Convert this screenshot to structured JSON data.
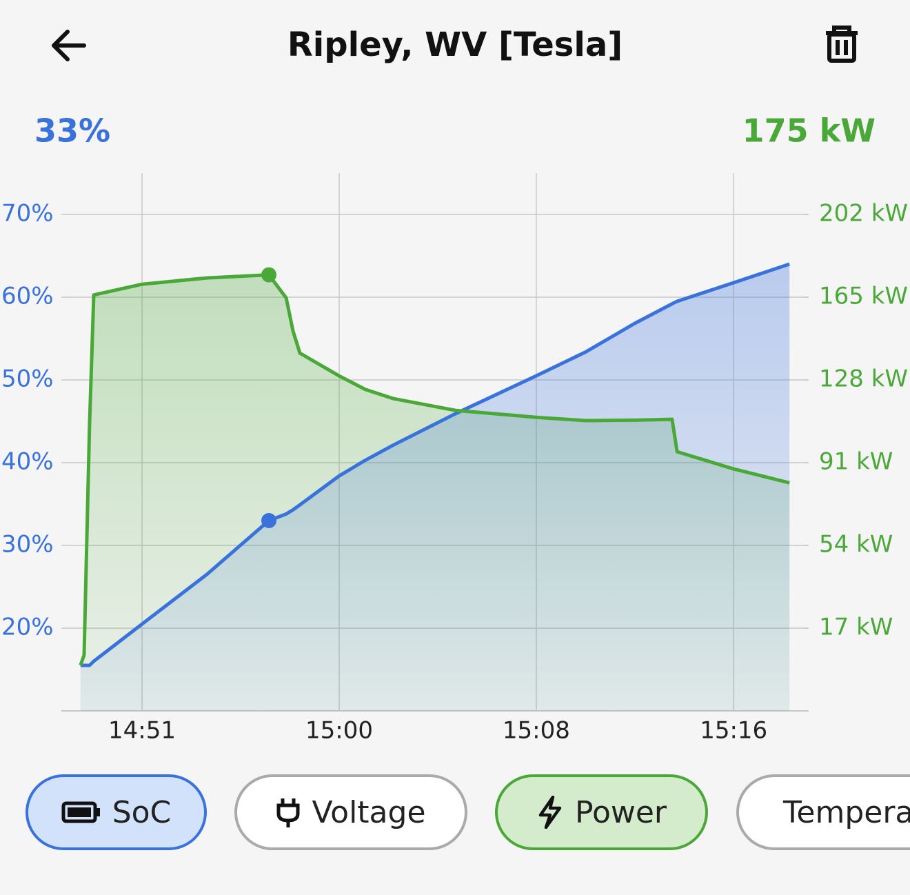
{
  "header": {
    "title": "Ripley, WV [Tesla]"
  },
  "chart_data": {
    "type": "line",
    "readouts": {
      "left": "33%",
      "right": "175 kW"
    },
    "cursor": 6,
    "x": [
      49.07,
      49.22,
      49.45,
      49.63,
      51.67,
      54.41,
      57.03,
      57.76,
      58.05,
      58.34,
      60,
      61.11,
      62.27,
      64.9,
      68.33,
      70.43,
      72.47,
      74.07,
      74.28,
      76.67,
      79.03
    ],
    "xlim": [
      48.26,
      79.84
    ],
    "xticks": [
      {
        "value": 51.67,
        "label": "14:51"
      },
      {
        "value": 60,
        "label": "15:00"
      },
      {
        "value": 68.33,
        "label": "15:08"
      },
      {
        "value": 76.67,
        "label": "15:16"
      }
    ],
    "ylim": [
      10,
      75
    ],
    "yticks": [
      {
        "value": 20,
        "label": "20%"
      },
      {
        "value": 30,
        "label": "30%"
      },
      {
        "value": 40,
        "label": "40%"
      },
      {
        "value": 50,
        "label": "50%"
      },
      {
        "value": 60,
        "label": "60%"
      },
      {
        "value": 70,
        "label": "70%"
      }
    ],
    "y2lim": [
      -20,
      220.5
    ],
    "y2ticks": [
      {
        "value": 17,
        "label": "17 kW"
      },
      {
        "value": 54,
        "label": "54 kW"
      },
      {
        "value": 91,
        "label": "91 kW"
      },
      {
        "value": 128,
        "label": "128 kW"
      },
      {
        "value": 165,
        "label": "165 kW"
      },
      {
        "value": 202,
        "label": "202 kW"
      }
    ],
    "grid": true,
    "series": [
      {
        "name": "SoC",
        "color": "#3a72dc",
        "values": [
          15.5,
          15.5,
          15.5,
          16.0,
          20.5,
          26.5,
          33,
          33.8,
          34.3,
          34.9,
          38.4,
          40.3,
          42.1,
          45.9,
          50.5,
          53.4,
          56.8,
          59.2,
          59.5,
          61.75,
          64
        ]
      },
      {
        "name": "Power",
        "color": "#4aa838",
        "axis": "y2",
        "values": [
          0.4,
          5,
          107,
          166,
          170.8,
          173.6,
          175,
          164.7,
          149.9,
          140,
          129.8,
          123.7,
          119.7,
          114.4,
          111.3,
          109.8,
          110,
          110.4,
          95.9,
          88.2,
          82
        ]
      }
    ],
    "chips": [
      "SoC",
      "Voltage",
      "Power",
      "Temperature"
    ]
  }
}
